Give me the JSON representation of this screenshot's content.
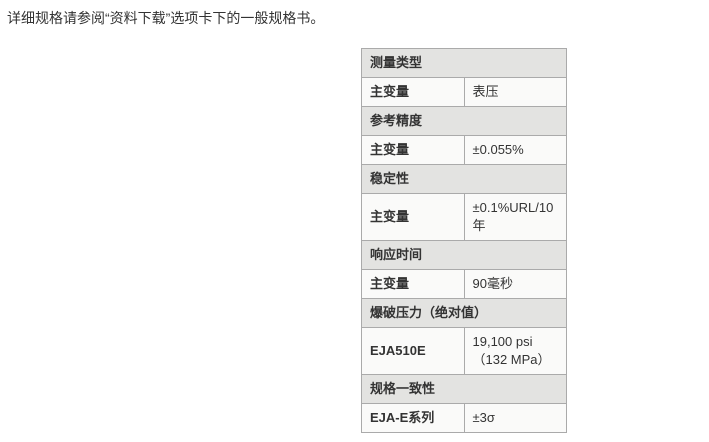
{
  "page": {
    "intro_text": "详细规格请参阅“资料下载”选项卡下的一般规格书。"
  },
  "spec_table": {
    "sections": [
      {
        "header": "测量类型",
        "rows": [
          {
            "label": "主变量",
            "value": "表压"
          }
        ]
      },
      {
        "header": "参考精度",
        "rows": [
          {
            "label": "主变量",
            "value": "±0.055%"
          }
        ]
      },
      {
        "header": "稳定性",
        "rows": [
          {
            "label": "主变量",
            "value": "±0.1%URL/10年"
          }
        ]
      },
      {
        "header": "响应时间",
        "rows": [
          {
            "label": "主变量",
            "value": "90毫秒"
          }
        ]
      },
      {
        "header": "爆破压力（绝对值）",
        "rows": [
          {
            "label": "EJA510E",
            "value": "19,100 psi（132 MPa）"
          }
        ]
      },
      {
        "header": "规格一致性",
        "rows": [
          {
            "label": "EJA-E系列",
            "value": "±3σ"
          }
        ]
      }
    ]
  },
  "colors": {
    "section_header_bg": "#e3e3e1",
    "row_bg": "#fafaf9",
    "border": "#aaaaaa",
    "text": "#333333",
    "page_bg": "#ffffff"
  }
}
